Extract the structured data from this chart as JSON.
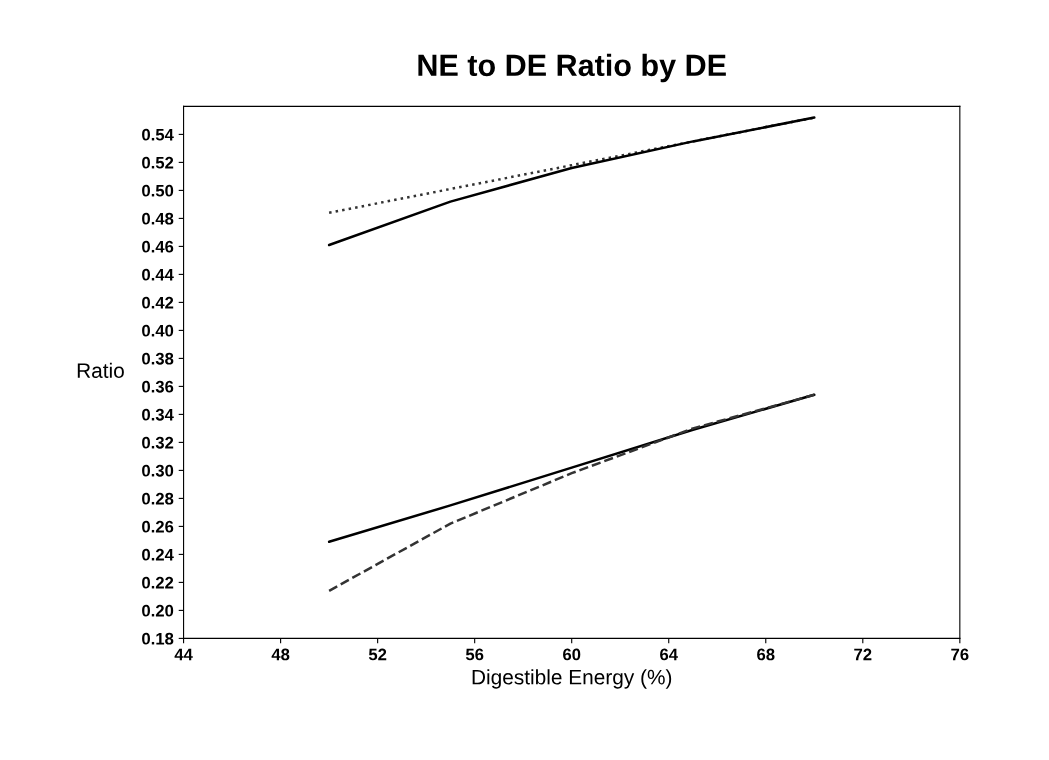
{
  "chart_data": {
    "type": "line",
    "title": "NE to DE Ratio by DE",
    "xlabel": "Digestible Energy (%)",
    "ylabel": "Ratio",
    "x": [
      50,
      55,
      60,
      65,
      70
    ],
    "series": [
      {
        "color": "#333333",
        "line_style": "dotted",
        "values": [
          0.484,
          0.501,
          0.518,
          0.535,
          0.552
        ]
      },
      {
        "color": "#000000",
        "line_style": "solid",
        "values": [
          0.461,
          0.492,
          0.516,
          0.535,
          0.552
        ]
      },
      {
        "color": "#000000",
        "line_style": "solid",
        "values": [
          0.249,
          0.275,
          0.302,
          0.329,
          0.354
        ]
      },
      {
        "color": "#333333",
        "line_style": "dashed",
        "values": [
          0.214,
          0.262,
          0.298,
          0.33,
          0.354
        ]
      }
    ],
    "xlim": [
      44,
      76
    ],
    "xticks": [
      44,
      48,
      52,
      56,
      60,
      64,
      68,
      72,
      76
    ],
    "ylim": [
      0.18,
      0.56
    ],
    "yticks": [
      {
        "value": 0.18,
        "label": "0.18"
      },
      {
        "value": 0.2,
        "label": "0.20"
      },
      {
        "value": 0.22,
        "label": "0.22"
      },
      {
        "value": 0.24,
        "label": "0.24"
      },
      {
        "value": 0.26,
        "label": "0.26"
      },
      {
        "value": 0.28,
        "label": "0.28"
      },
      {
        "value": 0.3,
        "label": "0.30"
      },
      {
        "value": 0.32,
        "label": "0.32"
      },
      {
        "value": 0.34,
        "label": "0.34"
      },
      {
        "value": 0.36,
        "label": "0.36"
      },
      {
        "value": 0.38,
        "label": "0.38"
      },
      {
        "value": 0.4,
        "label": "0.40"
      },
      {
        "value": 0.42,
        "label": "0.42"
      },
      {
        "value": 0.44,
        "label": "0.44"
      },
      {
        "value": 0.46,
        "label": "0.46"
      },
      {
        "value": 0.48,
        "label": "0.48"
      },
      {
        "value": 0.5,
        "label": "0.50"
      },
      {
        "value": 0.52,
        "label": "0.52"
      },
      {
        "value": 0.54,
        "label": "0.54"
      }
    ],
    "grid": false,
    "marker": "none"
  }
}
